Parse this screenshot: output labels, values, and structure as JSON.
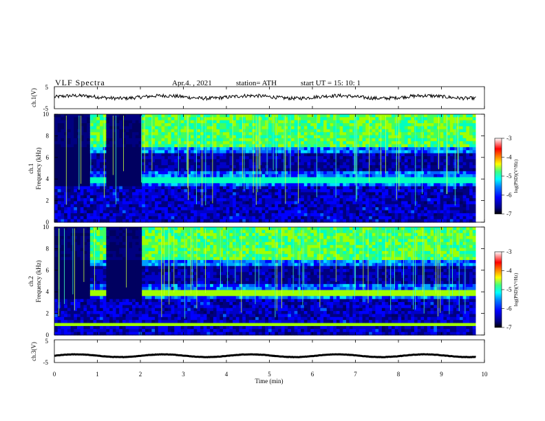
{
  "header": {
    "title": "VLF  Spectra",
    "date": "Apr.4.  , 2021",
    "station": "station= ATH",
    "start_ut": "start  UT  =    15: 10: 1"
  },
  "chart_data": {
    "type": "heatmap",
    "xlabel": "Time  (min)",
    "xlim": [
      0,
      10
    ],
    "x_ticks": [
      "0",
      "1",
      "2",
      "3",
      "4",
      "5",
      "6",
      "7",
      "8",
      "9",
      "10"
    ],
    "panels": [
      {
        "id": "ch1-voltage",
        "type": "line",
        "ylabel": "ch.1(V)",
        "ylim": [
          -5,
          5
        ],
        "y_ticks": [
          "5",
          "-5"
        ],
        "approx_level": 0.3
      },
      {
        "id": "ch1-spectrogram",
        "type": "heatmap",
        "ylabel_line1": "ch.1",
        "ylabel_line2": "Frequency  (kHz)",
        "ylim": [
          0,
          10
        ],
        "y_ticks": [
          "0",
          "2",
          "4",
          "6",
          "8",
          "10"
        ],
        "colorbar": {
          "label": "log(PSD)(V²/Hz)",
          "range": [
            -7,
            -3
          ],
          "ticks": [
            "-3",
            "-4",
            "-5",
            "-6",
            "-7"
          ]
        },
        "data_end_min": 9.8,
        "dark_intervals_min": [
          [
            0,
            0.85
          ],
          [
            1.2,
            2.05
          ]
        ],
        "band_kHz": 3.8
      },
      {
        "id": "ch2-spectrogram",
        "type": "heatmap",
        "ylabel_line1": "ch.2",
        "ylabel_line2": "Frequency  (kHz)",
        "ylim": [
          0,
          10
        ],
        "y_ticks": [
          "0",
          "2",
          "4",
          "6",
          "8",
          "10"
        ],
        "colorbar": {
          "label": "log(PSD)(V²/Hz)",
          "range": [
            -7,
            -3
          ],
          "ticks": [
            "-3",
            "-4",
            "-5",
            "-6",
            "-7"
          ]
        },
        "data_end_min": 9.8,
        "dark_intervals_min": [
          [
            0,
            0.85
          ],
          [
            1.2,
            2.05
          ]
        ],
        "band_kHz": 3.8
      },
      {
        "id": "ch3-voltage",
        "type": "line",
        "ylabel": "ch.3(V)",
        "ylim": [
          -5,
          5
        ],
        "y_ticks": [
          "5",
          "-5"
        ],
        "approx_level": -2
      }
    ],
    "colormap": [
      "#000080",
      "#0000ff",
      "#0080ff",
      "#00ffff",
      "#40ff80",
      "#ffff00",
      "#ff8000",
      "#ff0000",
      "#ffffff"
    ]
  }
}
